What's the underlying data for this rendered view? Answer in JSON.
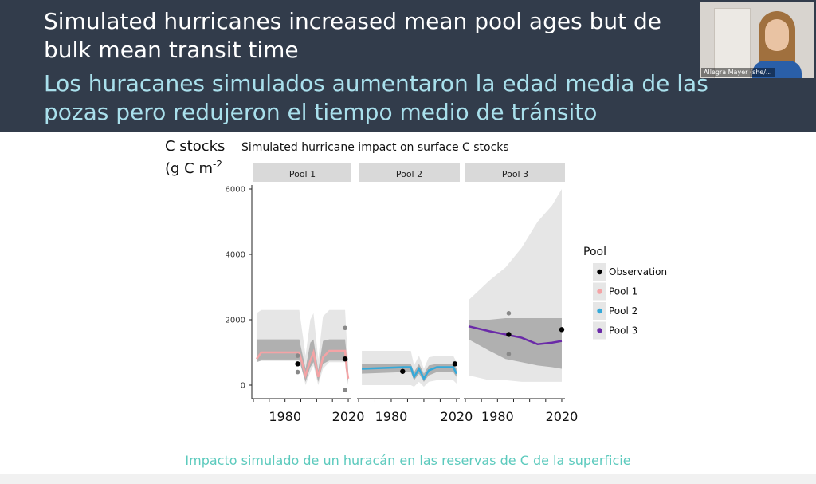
{
  "slide": {
    "title_en_line1": "Simulated hurricanes increased mean pool ages but de",
    "title_en_line2": "bulk mean transit time",
    "title_es_line1": "Los huracanes simulados aumentaron la edad media de las",
    "title_es_line2": "pozas pero redujeron el  tiempo medio de tránsito",
    "caption_es": "Impacto simulado de un huracán en las reservas de C de la superficie"
  },
  "webcam": {
    "name": "Allegra Mayer (she/..."
  },
  "colors": {
    "banner": "#323c4b",
    "title_en": "#ffffff",
    "title_es": "#a9e0ec",
    "caption": "#5ccabd",
    "pool1": "#f4a3a5",
    "pool2": "#35a9d9",
    "pool3": "#6a2aa8",
    "observation": "#000000"
  },
  "chart_data": {
    "type": "line",
    "title": "Simulated hurricane impact on surface C stocks",
    "ylabel_line1": "C stocks",
    "ylabel_line2_base": "(g C m",
    "ylabel_line2_sup": "-2",
    "ylim": [
      -200,
      6200
    ],
    "yticks": [
      0,
      2000,
      4000,
      6000
    ],
    "xticks": [
      1980,
      2020
    ],
    "legend_placement": "right",
    "legend": {
      "title": "Pool",
      "entries": [
        {
          "name": "Observation",
          "color": "#000000"
        },
        {
          "name": "Pool 1",
          "color": "#f4a3a5"
        },
        {
          "name": "Pool 2",
          "color": "#35a9d9"
        },
        {
          "name": "Pool 3",
          "color": "#6a2aa8"
        }
      ]
    },
    "panels": [
      {
        "label": "Pool 1",
        "color": "#f4a3a5",
        "xlim": [
          1960,
          2022
        ],
        "series": [
          {
            "x": 1962,
            "mean": 800,
            "lo95": 750,
            "hi95": 2200,
            "lo50": 700,
            "hi50": 1400
          },
          {
            "x": 1965,
            "mean": 1000,
            "lo95": 800,
            "hi95": 2300,
            "lo50": 750,
            "hi50": 1400
          },
          {
            "x": 1985,
            "mean": 1000,
            "lo95": 800,
            "hi95": 2300,
            "lo50": 750,
            "hi50": 1400
          },
          {
            "x": 1989,
            "mean": 1000,
            "lo95": 800,
            "hi95": 2300,
            "lo50": 750,
            "hi50": 1400
          },
          {
            "x": 1993,
            "mean": 300,
            "lo95": 0,
            "hi95": 900,
            "lo50": 100,
            "hi50": 500
          },
          {
            "x": 1996,
            "mean": 750,
            "lo95": 400,
            "hi95": 2000,
            "lo50": 550,
            "hi50": 1300
          },
          {
            "x": 1998,
            "mean": 1000,
            "lo95": 600,
            "hi95": 2200,
            "lo50": 700,
            "hi50": 1400
          },
          {
            "x": 2001,
            "mean": 250,
            "lo95": 0,
            "hi95": 800,
            "lo50": 100,
            "hi50": 450
          },
          {
            "x": 2004,
            "mean": 850,
            "lo95": 500,
            "hi95": 2100,
            "lo50": 650,
            "hi50": 1350
          },
          {
            "x": 2008,
            "mean": 1050,
            "lo95": 700,
            "hi95": 2300,
            "lo50": 750,
            "hi50": 1400
          },
          {
            "x": 2016,
            "mean": 1050,
            "lo95": 700,
            "hi95": 2300,
            "lo50": 750,
            "hi50": 1400
          },
          {
            "x": 2018,
            "mean": 1050,
            "lo95": 700,
            "hi95": 2300,
            "lo50": 750,
            "hi50": 1400
          },
          {
            "x": 2019,
            "mean": 500,
            "lo95": 200,
            "hi95": 1400,
            "lo50": 350,
            "hi50": 900
          },
          {
            "x": 2020,
            "mean": 200,
            "lo95": 0,
            "hi95": 700,
            "lo50": 100,
            "hi50": 400
          }
        ],
        "observations": [
          {
            "x": 1988,
            "y": 650,
            "type": "obs"
          },
          {
            "x": 1988,
            "y": 900,
            "type": "range"
          },
          {
            "x": 1988,
            "y": 400,
            "type": "range"
          },
          {
            "x": 2018,
            "y": 800,
            "type": "obs"
          },
          {
            "x": 2018,
            "y": 1750,
            "type": "range"
          },
          {
            "x": 2018,
            "y": -150,
            "type": "range"
          }
        ]
      },
      {
        "label": "Pool 2",
        "color": "#35a9d9",
        "xlim": [
          1960,
          2022
        ],
        "series": [
          {
            "x": 1962,
            "mean": 500,
            "lo95": 0,
            "hi95": 1050,
            "lo50": 350,
            "hi50": 650
          },
          {
            "x": 1988,
            "mean": 550,
            "lo95": 0,
            "hi95": 1050,
            "lo50": 400,
            "hi50": 650
          },
          {
            "x": 1992,
            "mean": 550,
            "lo95": 0,
            "hi95": 1050,
            "lo50": 400,
            "hi50": 650
          },
          {
            "x": 1994,
            "mean": 250,
            "lo95": -50,
            "hi95": 600,
            "lo50": 150,
            "hi50": 400
          },
          {
            "x": 1997,
            "mean": 500,
            "lo95": 100,
            "hi95": 900,
            "lo50": 350,
            "hi50": 650
          },
          {
            "x": 2000,
            "mean": 200,
            "lo95": -50,
            "hi95": 500,
            "lo50": 100,
            "hi50": 350
          },
          {
            "x": 2003,
            "mean": 450,
            "lo95": 100,
            "hi95": 850,
            "lo50": 300,
            "hi50": 600
          },
          {
            "x": 2008,
            "mean": 550,
            "lo95": 150,
            "hi95": 900,
            "lo50": 400,
            "hi50": 650
          },
          {
            "x": 2018,
            "mean": 550,
            "lo95": 150,
            "hi95": 900,
            "lo50": 400,
            "hi50": 650
          },
          {
            "x": 2020,
            "mean": 350,
            "lo95": 50,
            "hi95": 700,
            "lo50": 250,
            "hi50": 500
          }
        ],
        "observations": [
          {
            "x": 1987,
            "y": 420,
            "type": "obs"
          },
          {
            "x": 2019,
            "y": 650,
            "type": "obs"
          }
        ]
      },
      {
        "label": "Pool 3",
        "color": "#6a2aa8",
        "xlim": [
          1960,
          2022
        ],
        "series": [
          {
            "x": 1962,
            "mean": 1800,
            "lo95": 300,
            "hi95": 2600,
            "lo50": 1400,
            "hi50": 2000
          },
          {
            "x": 1975,
            "mean": 1650,
            "lo95": 150,
            "hi95": 3200,
            "lo50": 1050,
            "hi50": 2000
          },
          {
            "x": 1985,
            "mean": 1550,
            "lo95": 150,
            "hi95": 3600,
            "lo50": 800,
            "hi50": 2050
          },
          {
            "x": 1995,
            "mean": 1450,
            "lo95": 100,
            "hi95": 4200,
            "lo50": 700,
            "hi50": 2050
          },
          {
            "x": 2005,
            "mean": 1250,
            "lo95": 100,
            "hi95": 5000,
            "lo50": 600,
            "hi50": 2050
          },
          {
            "x": 2014,
            "mean": 1300,
            "lo95": 100,
            "hi95": 5500,
            "lo50": 550,
            "hi50": 2050
          },
          {
            "x": 2020,
            "mean": 1350,
            "lo95": 100,
            "hi95": 6000,
            "lo50": 500,
            "hi50": 2050
          }
        ],
        "observations": [
          {
            "x": 1987,
            "y": 1550,
            "type": "obs"
          },
          {
            "x": 1987,
            "y": 2200,
            "type": "range"
          },
          {
            "x": 1987,
            "y": 950,
            "type": "range"
          },
          {
            "x": 2020,
            "y": 1700,
            "type": "obs"
          }
        ]
      }
    ]
  }
}
